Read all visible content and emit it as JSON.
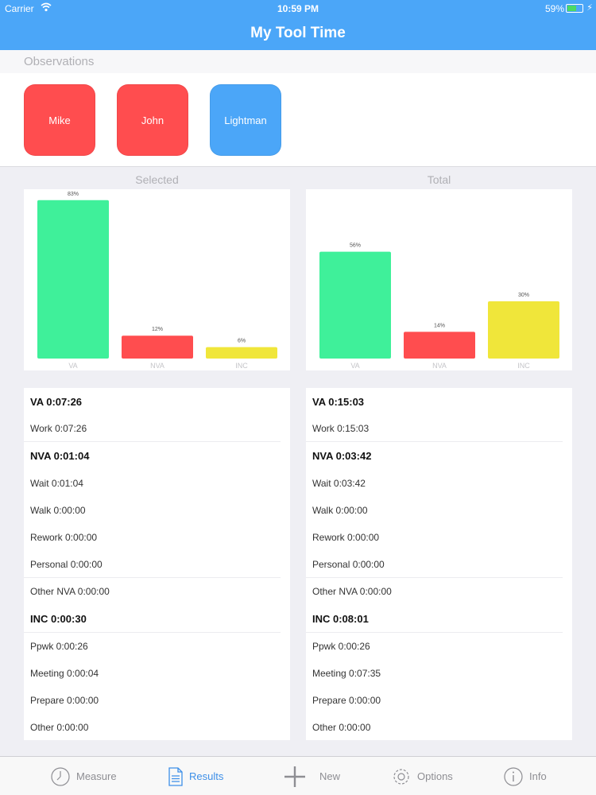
{
  "status": {
    "carrier": "Carrier",
    "time": "10:59 PM",
    "battery": "59%"
  },
  "app": {
    "title": "My Tool Time"
  },
  "observations": {
    "header": "Observations",
    "people": [
      {
        "name": "Mike",
        "color": "#ff4d4f"
      },
      {
        "name": "John",
        "color": "#ff4d4f"
      },
      {
        "name": "Lightman",
        "color": "#4ba6f8"
      }
    ]
  },
  "sections": {
    "selected": "Selected",
    "total": "Total"
  },
  "chart_data": [
    {
      "type": "bar",
      "title": "Selected",
      "categories": [
        "VA",
        "NVA",
        "INC"
      ],
      "values": [
        83,
        12,
        6
      ],
      "labels": [
        "83%",
        "12%",
        "6%"
      ],
      "colors": [
        "#3ff09a",
        "#ff4d4f",
        "#f0e63a"
      ],
      "ylim": [
        0,
        100
      ]
    },
    {
      "type": "bar",
      "title": "Total",
      "categories": [
        "VA",
        "NVA",
        "INC"
      ],
      "values": [
        56,
        14,
        30
      ],
      "labels": [
        "56%",
        "14%",
        "30%"
      ],
      "colors": [
        "#3ff09a",
        "#ff4d4f",
        "#f0e63a"
      ],
      "ylim": [
        0,
        100
      ]
    }
  ],
  "selected_list": {
    "va": "VA 0:07:26",
    "work": "Work 0:07:26",
    "nva": "NVA 0:01:04",
    "wait": "Wait 0:01:04",
    "walk": "Walk 0:00:00",
    "rework": "Rework 0:00:00",
    "personal": "Personal 0:00:00",
    "other_nva": "Other NVA 0:00:00",
    "inc": "INC 0:00:30",
    "ppwk": "Ppwk 0:00:26",
    "meeting": "Meeting 0:00:04",
    "prepare": "Prepare 0:00:00",
    "other": "Other 0:00:00"
  },
  "total_list": {
    "va": "VA 0:15:03",
    "work": "Work 0:15:03",
    "nva": "NVA 0:03:42",
    "wait": "Wait 0:03:42",
    "walk": "Walk 0:00:00",
    "rework": "Rework 0:00:00",
    "personal": "Personal 0:00:00",
    "other_nva": "Other NVA 0:00:00",
    "inc": "INC 0:08:01",
    "ppwk": "Ppwk 0:00:26",
    "meeting": "Meeting 0:07:35",
    "prepare": "Prepare 0:00:00",
    "other": "Other 0:00:00"
  },
  "tabs": {
    "measure": "Measure",
    "results": "Results",
    "new": "New",
    "options": "Options",
    "info": "Info"
  }
}
